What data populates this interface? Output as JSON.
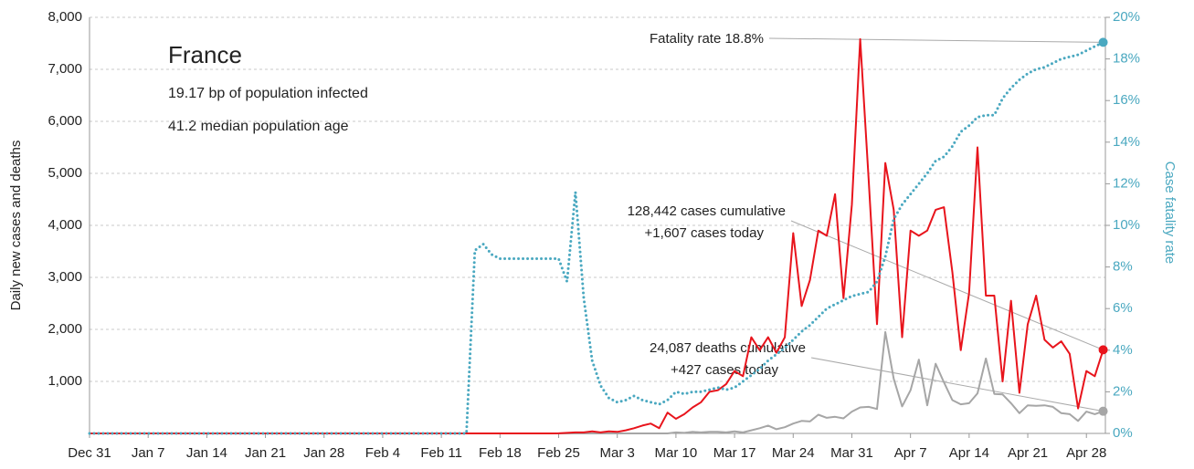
{
  "chart_data": {
    "type": "line",
    "title": "France",
    "subtitle": [
      "19.17 bp of population infected",
      "41.2 median population age"
    ],
    "ylabel": "Daily new cases and deaths",
    "y2label": "Case fatality rate",
    "categories": [
      "Dec 31",
      null,
      null,
      null,
      null,
      null,
      null,
      "Jan 7",
      null,
      null,
      null,
      null,
      null,
      null,
      "Jan 14",
      null,
      null,
      null,
      null,
      null,
      null,
      "Jan 21",
      null,
      null,
      null,
      null,
      null,
      null,
      "Jan 28",
      null,
      null,
      null,
      null,
      null,
      null,
      "Feb 4",
      null,
      null,
      null,
      null,
      null,
      null,
      "Feb 11",
      null,
      null,
      null,
      null,
      null,
      null,
      "Feb 18",
      null,
      null,
      null,
      null,
      null,
      null,
      "Feb 25",
      null,
      null,
      null,
      null,
      null,
      null,
      "Mar 3",
      null,
      null,
      null,
      null,
      null,
      null,
      "Mar 10",
      null,
      null,
      null,
      null,
      null,
      null,
      "Mar 17",
      null,
      null,
      null,
      null,
      null,
      null,
      "Mar 24",
      null,
      null,
      null,
      null,
      null,
      null,
      "Mar 31",
      null,
      null,
      null,
      null,
      null,
      null,
      "Apr 7",
      null,
      null,
      null,
      null,
      null,
      null,
      "Apr 14",
      null,
      null,
      null,
      null,
      null,
      null,
      "Apr 21",
      null,
      null,
      null,
      null,
      null,
      null,
      "Apr 28",
      null,
      null
    ],
    "series": [
      {
        "color": "#e8141c",
        "values": [
          0,
          0,
          0,
          0,
          0,
          0,
          0,
          0,
          0,
          0,
          0,
          0,
          0,
          0,
          0,
          0,
          0,
          0,
          0,
          0,
          0,
          0,
          0,
          0,
          0,
          0,
          0,
          0,
          0,
          0,
          0,
          0,
          0,
          0,
          0,
          0,
          0,
          0,
          0,
          0,
          0,
          0,
          0,
          0,
          0,
          0,
          0,
          0,
          0,
          0,
          0,
          0,
          0,
          0,
          0,
          0,
          2,
          10,
          20,
          20,
          40,
          20,
          40,
          30,
          60,
          100,
          150,
          190,
          100,
          400,
          280,
          370,
          500,
          600,
          800,
          830,
          950,
          1200,
          1100,
          1850,
          1600,
          1850,
          1550,
          1850,
          3850,
          2450,
          2950,
          3900,
          3800,
          4600,
          2600,
          4400,
          7580,
          4900,
          2100,
          5200,
          4300,
          1850,
          3900,
          3800,
          3900,
          4300,
          4350,
          3100,
          1600,
          2700,
          5500,
          2650,
          2650,
          1000,
          2550,
          780,
          2100,
          2650,
          1800,
          1650,
          1770,
          1530,
          480,
          1200,
          1100,
          1607
        ]
      },
      {
        "color": "#a6a6a6",
        "values": [
          0,
          0,
          0,
          0,
          0,
          0,
          0,
          0,
          0,
          0,
          0,
          0,
          0,
          0,
          0,
          0,
          0,
          0,
          0,
          0,
          0,
          0,
          0,
          0,
          0,
          0,
          0,
          0,
          0,
          0,
          0,
          0,
          0,
          0,
          0,
          0,
          0,
          0,
          0,
          0,
          0,
          0,
          0,
          0,
          0,
          0,
          0,
          0,
          0,
          0,
          0,
          0,
          0,
          0,
          0,
          0,
          0,
          0,
          0,
          0,
          0,
          0,
          0,
          0,
          0,
          0,
          0,
          0,
          0,
          0,
          20,
          10,
          30,
          20,
          30,
          30,
          20,
          40,
          20,
          60,
          100,
          150,
          80,
          120,
          190,
          240,
          230,
          360,
          300,
          320,
          290,
          420,
          500,
          510,
          470,
          1950,
          1050,
          520,
          830,
          1420,
          540,
          1340,
          980,
          640,
          560,
          580,
          770,
          1440,
          760,
          750,
          580,
          390,
          540,
          530,
          540,
          510,
          390,
          370,
          240,
          420,
          370,
          427
        ]
      },
      {
        "color": "#4aa8c0",
        "axis": "y2",
        "style": "dotted",
        "values": [
          0,
          0,
          0,
          0,
          0,
          0,
          0,
          0,
          0,
          0,
          0,
          0,
          0,
          0,
          0,
          0,
          0,
          0,
          0,
          0,
          0,
          0,
          0,
          0,
          0,
          0,
          0,
          0,
          0,
          0,
          0,
          0,
          0,
          0,
          0,
          0,
          0,
          0,
          0,
          0,
          0,
          0,
          0,
          0,
          0,
          0,
          8.8,
          9.1,
          8.6,
          8.4,
          8.4,
          8.4,
          8.4,
          8.4,
          8.4,
          8.4,
          8.4,
          7.3,
          11.6,
          6.5,
          3.5,
          2.3,
          1.7,
          1.5,
          1.6,
          1.8,
          1.6,
          1.5,
          1.4,
          1.6,
          2.0,
          1.9,
          2.0,
          2.0,
          2.1,
          2.2,
          2.1,
          2.2,
          2.5,
          2.8,
          3.1,
          3.5,
          3.8,
          4.1,
          4.5,
          4.9,
          5.2,
          5.6,
          6.0,
          6.2,
          6.4,
          6.6,
          6.7,
          6.8,
          7.3,
          8.5,
          10.3,
          11.0,
          11.5,
          12.0,
          12.5,
          13.1,
          13.3,
          13.8,
          14.5,
          14.8,
          15.2,
          15.3,
          15.3,
          16.1,
          16.6,
          17.0,
          17.3,
          17.5,
          17.6,
          17.8,
          18.0,
          18.1,
          18.2,
          18.4,
          18.6,
          18.8
        ]
      }
    ],
    "ylim": [
      0,
      8000
    ],
    "yticks": [
      {
        "value": 1000,
        "label": "1,000"
      },
      {
        "value": 2000,
        "label": "2,000"
      },
      {
        "value": 3000,
        "label": "3,000"
      },
      {
        "value": 4000,
        "label": "4,000"
      },
      {
        "value": 5000,
        "label": "5,000"
      },
      {
        "value": 6000,
        "label": "6,000"
      },
      {
        "value": 7000,
        "label": "7,000"
      },
      {
        "value": 8000,
        "label": "8,000"
      }
    ],
    "y2lim": [
      0,
      20
    ],
    "y2ticks": [
      {
        "value": 0,
        "label": "0%"
      },
      {
        "value": 2,
        "label": "2%"
      },
      {
        "value": 4,
        "label": "4%"
      },
      {
        "value": 6,
        "label": "6%"
      },
      {
        "value": 8,
        "label": "8%"
      },
      {
        "value": 10,
        "label": "10%"
      },
      {
        "value": 12,
        "label": "12%"
      },
      {
        "value": 14,
        "label": "14%"
      },
      {
        "value": 16,
        "label": "16%"
      },
      {
        "value": 18,
        "label": "18%"
      },
      {
        "value": 20,
        "label": "20%"
      }
    ],
    "grid": true,
    "annotations": [
      {
        "text": "Fatality rate 18.8%"
      },
      {
        "text": [
          "128,442 cases cumulative",
          "+1,607 cases today"
        ]
      },
      {
        "text": [
          "24,087 deaths cumulative",
          "+427 cases today"
        ]
      }
    ]
  }
}
